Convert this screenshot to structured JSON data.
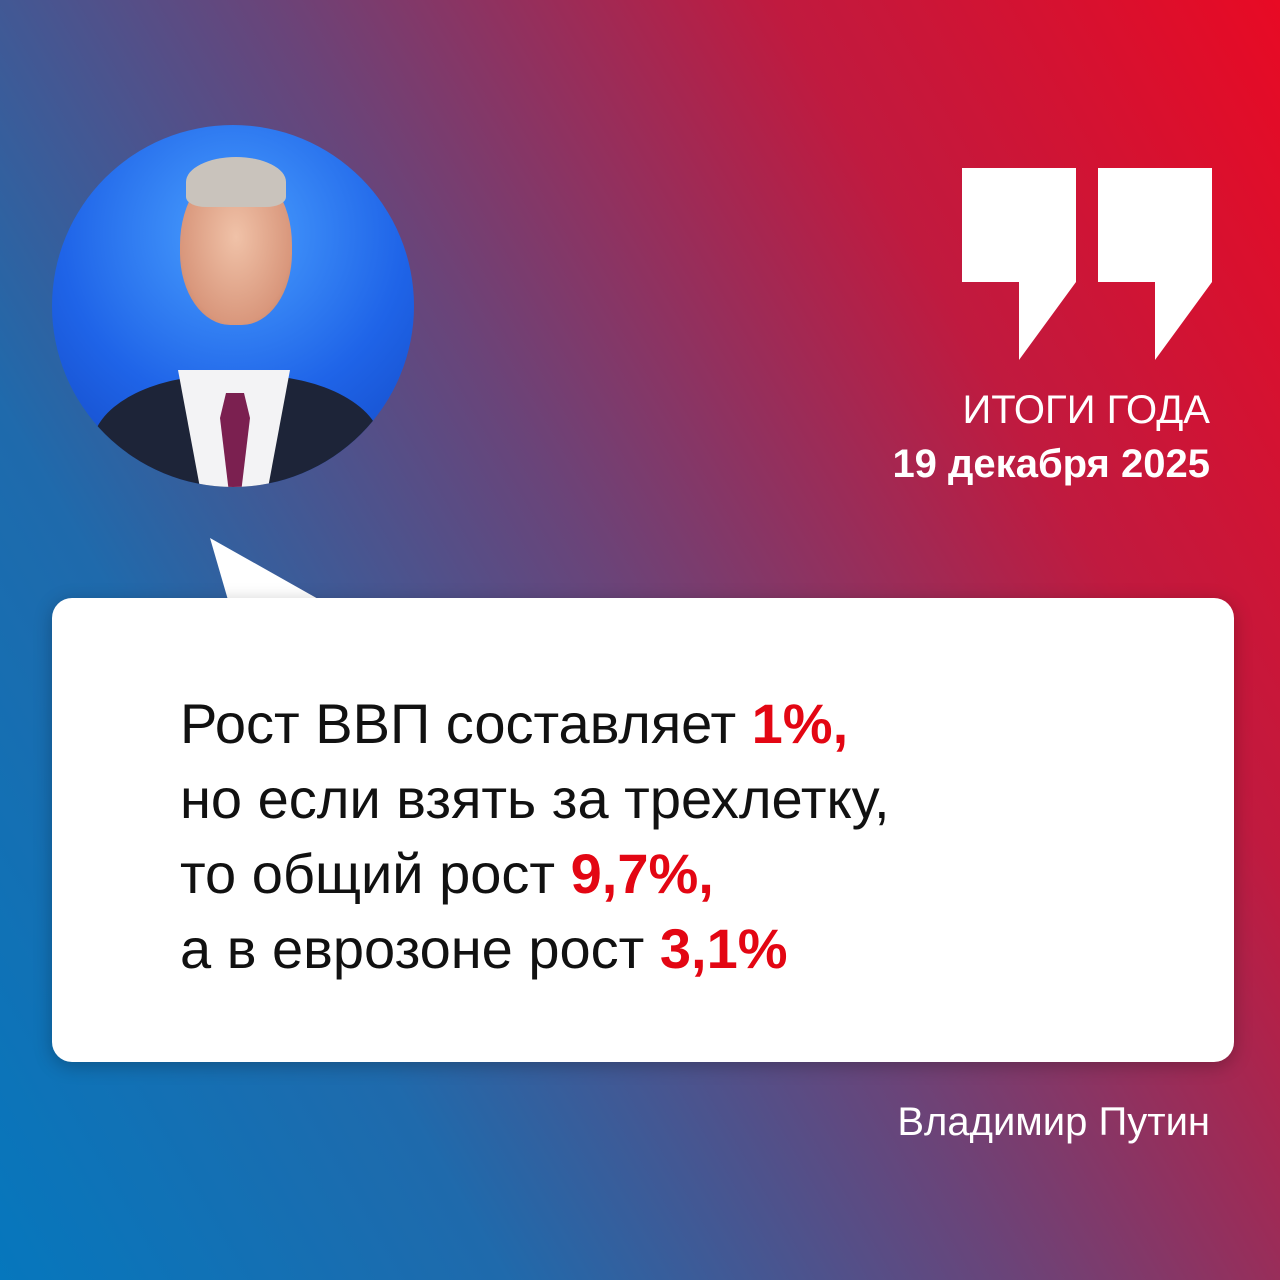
{
  "header": {
    "title": "ИТОГИ ГОДА",
    "date": "19 декабря 2025"
  },
  "quote": {
    "lines": [
      {
        "text": "Рост ВВП составляет ",
        "highlight": "1%,"
      },
      {
        "text": "но если взять за трехлетку,",
        "highlight": ""
      },
      {
        "text": "то общий рост ",
        "highlight": "9,7%,"
      },
      {
        "text": "а в еврозоне рост ",
        "highlight": "3,1%"
      }
    ],
    "author": "Владимир Путин"
  },
  "colors": {
    "blue": "#0677bd",
    "red": "#e80a24",
    "highlight": "#e30613"
  },
  "icons": {
    "quote": "closing-quotation-mark-icon"
  }
}
